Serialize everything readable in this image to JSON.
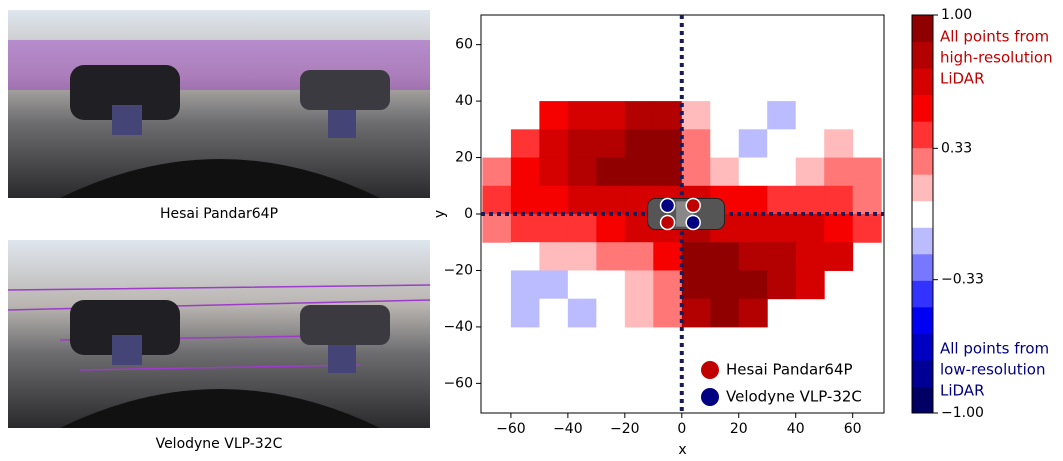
{
  "photos": [
    {
      "caption": "Hesai Pandar64P"
    },
    {
      "caption": "Velodyne VLP-32C"
    }
  ],
  "chart_data": {
    "type": "contour",
    "xlabel": "x",
    "ylabel": "y",
    "xlim": [
      -70.5,
      71
    ],
    "ylim": [
      -70.5,
      70.5
    ],
    "xticks": [
      {
        "value": -60,
        "label": "−60"
      },
      {
        "value": -40,
        "label": "−40"
      },
      {
        "value": -20,
        "label": "−20"
      },
      0,
      20,
      40,
      60
    ],
    "yticks": [
      {
        "value": -60,
        "label": "−60"
      },
      {
        "value": -40,
        "label": "−40"
      },
      {
        "value": -20,
        "label": "−20"
      },
      0,
      20,
      40,
      60
    ],
    "x": [
      -65,
      -55,
      -45,
      -35,
      -25,
      -15,
      -5,
      5,
      15,
      25,
      35,
      45,
      55,
      65
    ],
    "y": [
      35,
      25,
      15,
      5,
      -5,
      -15,
      -25,
      -35
    ],
    "z": [
      [
        null,
        null,
        0.5,
        0.7,
        0.7,
        0.8,
        0.8,
        0.1,
        0,
        0,
        -0.1,
        0,
        0,
        null
      ],
      [
        null,
        0.4,
        0.6,
        0.8,
        0.8,
        0.9,
        0.9,
        0.2,
        0,
        -0.1,
        0,
        0,
        0.1,
        null
      ],
      [
        0.3,
        0.5,
        0.7,
        0.8,
        0.9,
        0.9,
        0.9,
        0.3,
        0.1,
        0,
        0,
        0.1,
        0.2,
        0.2
      ],
      [
        0.4,
        0.5,
        0.5,
        0.6,
        0.6,
        0.7,
        0.7,
        0.6,
        0.5,
        0.5,
        0.4,
        0.4,
        0.4,
        0.3
      ],
      [
        0.3,
        0.4,
        0.4,
        0.4,
        0.5,
        0.6,
        0.7,
        0.8,
        0.7,
        0.7,
        0.6,
        0.6,
        0.5,
        0.4
      ],
      [
        null,
        0,
        0.1,
        0.1,
        0.2,
        0.3,
        0.5,
        0.9,
        0.9,
        0.8,
        0.8,
        0.7,
        0.6,
        null
      ],
      [
        null,
        -0.1,
        -0.2,
        0,
        0,
        0.1,
        0.2,
        0.9,
        0.9,
        0.9,
        0.8,
        0.6,
        null,
        null
      ],
      [
        null,
        -0.1,
        0,
        -0.1,
        0,
        0.1,
        0.2,
        0.8,
        0.9,
        0.8,
        null,
        null,
        null,
        null
      ]
    ],
    "series": [
      {
        "name": "Hesai Pandar64P",
        "color": "#c00000",
        "x": [
          -5,
          4
        ],
        "y": [
          -3,
          3
        ]
      },
      {
        "name": "Velodyne VLP-32C",
        "color": "#000080",
        "x": [
          -5,
          4
        ],
        "y": [
          3,
          -3
        ]
      }
    ],
    "legend": "lower right",
    "colormap": [
      "#00004c",
      "#0000ff",
      "#ffffff",
      "#ff0000",
      "#800000"
    ],
    "levels": 15,
    "clim": [
      -1,
      1
    ],
    "cticks": [
      {
        "value": 1,
        "label": "1.00"
      },
      0.33,
      {
        "value": -0.33,
        "label": "−0.33"
      },
      {
        "value": -1,
        "label": "−1.00"
      }
    ],
    "annotations": [
      {
        "lines": [
          "All points from",
          "high-resolution",
          "LiDAR"
        ],
        "color": "#c00000"
      },
      {
        "lines": [
          "All points from",
          "low-resolution",
          "LiDAR"
        ],
        "color": "#000080"
      }
    ]
  }
}
